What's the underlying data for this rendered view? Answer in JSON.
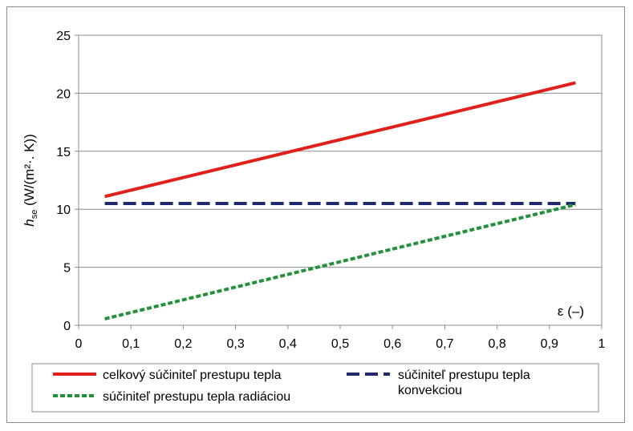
{
  "chart_data": {
    "type": "line",
    "x_ticks": [
      "0",
      "0,1",
      "0,2",
      "0,3",
      "0,4",
      "0,5",
      "0,6",
      "0,7",
      "0,8",
      "0,9",
      "1"
    ],
    "y_ticks": [
      "0",
      "5",
      "10",
      "15",
      "20",
      "25"
    ],
    "xlim": [
      0,
      1
    ],
    "ylim": [
      0,
      25
    ],
    "xlabel": "ε (–)",
    "ylabel": {
      "main": "h",
      "sub": "se",
      "unit": " (W/(m²·. K))"
    },
    "grid": "horizontal",
    "legend_position": "bottom",
    "series": [
      {
        "name": "celkový súčiniteľ prestupu tepla",
        "color": "#e0201b",
        "style": "solid",
        "x": [
          0.05,
          0.95
        ],
        "y": [
          11.1,
          20.9
        ]
      },
      {
        "name": "súčiniteľ prestupu tepla konvekciou",
        "name_lines": [
          "súčiniteľ prestupu tepla",
          "konvekciou"
        ],
        "color": "#1f2a6e",
        "style": "long-dash",
        "x": [
          0.05,
          0.95
        ],
        "y": [
          10.5,
          10.5
        ]
      },
      {
        "name": "súčiniteľ prestupu tepla radiáciou",
        "color": "#22913a",
        "style": "short-dash",
        "x": [
          0.05,
          0.95
        ],
        "y": [
          0.55,
          10.4
        ]
      }
    ]
  }
}
